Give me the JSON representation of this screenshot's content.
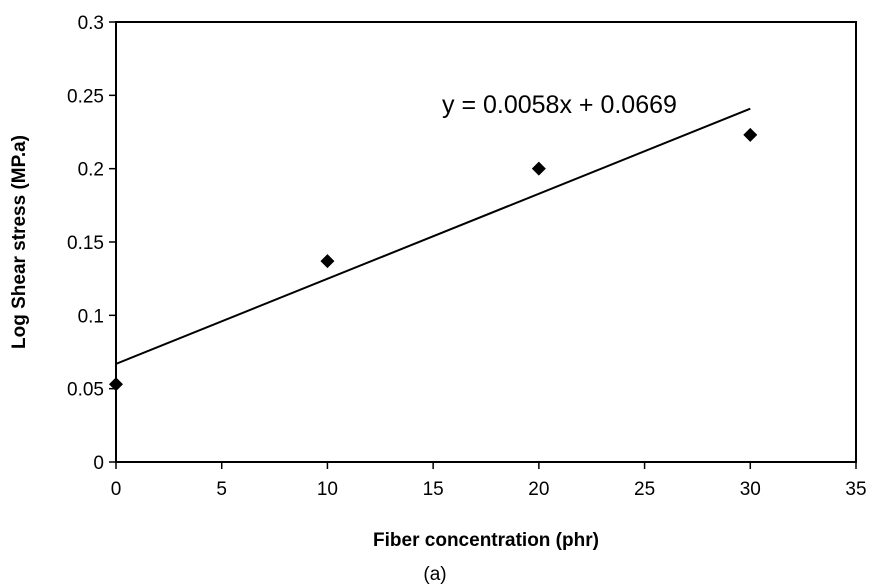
{
  "chart_data": {
    "type": "scatter",
    "title": "",
    "xlabel": "Fiber concentration (phr)",
    "ylabel": "Log Shear stress (MP.a)",
    "caption": "(a)",
    "xlim": [
      0,
      35
    ],
    "ylim": [
      0,
      0.3
    ],
    "x_ticks": [
      "0",
      "5",
      "10",
      "15",
      "20",
      "25",
      "30",
      "35"
    ],
    "y_ticks": [
      "0",
      "0.05",
      "0.1",
      "0.15",
      "0.2",
      "0.25",
      "0.3"
    ],
    "grid": false,
    "legend": "none",
    "marker": "diamond",
    "marker_color": "#000000",
    "series": [
      {
        "x": [
          0,
          10,
          20,
          30
        ],
        "y": [
          0.053,
          0.137,
          0.2,
          0.223
        ]
      }
    ],
    "trendline": {
      "type": "linear",
      "slope": 0.0058,
      "intercept": 0.0669,
      "x_range": [
        0,
        30
      ],
      "equation_label": "y = 0.0058x + 0.0669"
    }
  }
}
